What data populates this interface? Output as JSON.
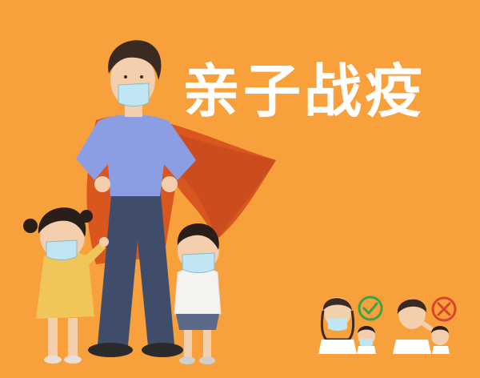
{
  "poster": {
    "title": "亲子战疫",
    "colors": {
      "background": "#f8a13c",
      "title": "#ffffff",
      "cape": "#d9561f",
      "sweater": "#8b9ee3",
      "jeans": "#3f4d6b",
      "mask": "#bfe6f2",
      "check": "#3aa34a",
      "cross": "#d9442b"
    },
    "icons": [
      "correct-mask-check-icon",
      "incorrect-mask-cross-icon"
    ]
  }
}
